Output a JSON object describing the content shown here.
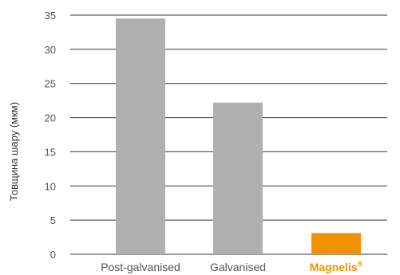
{
  "chart_data": {
    "type": "bar",
    "categories": [
      "Post-galvanised",
      "Galvanised",
      "Magnelis"
    ],
    "category_suffix": [
      "",
      "",
      "®"
    ],
    "values": [
      34.5,
      22.2,
      3.1
    ],
    "highlight_index": 2,
    "title": "",
    "xlabel": "",
    "ylabel": "Товщина шару (мкм)",
    "ylim": [
      0,
      35
    ],
    "yticks": [
      0,
      5,
      10,
      15,
      20,
      25,
      30,
      35
    ],
    "grid": true,
    "legend": "none",
    "colors": {
      "bar": "#b0b0b0",
      "highlight_bar": "#f39200",
      "grid": "#333333",
      "tick_text": "#555555",
      "highlight_text": "#f39200"
    }
  }
}
